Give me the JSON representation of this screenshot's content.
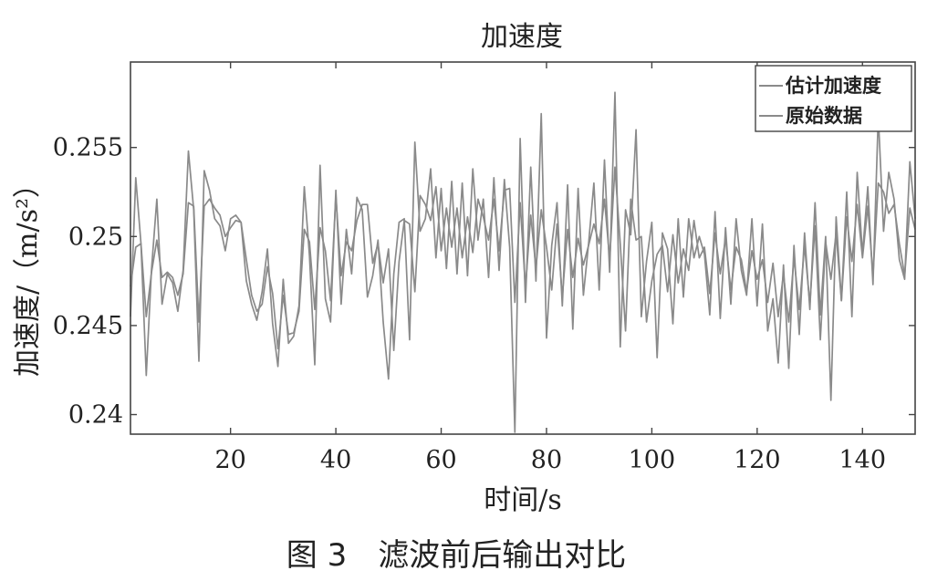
{
  "chart_data": {
    "type": "line",
    "title": "加速度",
    "xlabel": "时间/s",
    "ylabel": "加速度/（m/s²）",
    "xlim": [
      1,
      150
    ],
    "ylim": [
      0.2389,
      0.2598
    ],
    "xticks": [
      20,
      40,
      60,
      80,
      100,
      120,
      140
    ],
    "xtick_labels": [
      "20",
      "40",
      "60",
      "80",
      "100",
      "120",
      "140"
    ],
    "yticks": [
      0.24,
      0.245,
      0.25,
      0.255
    ],
    "ytick_labels": [
      "0.24",
      "0.245",
      "0.25",
      "0.255"
    ],
    "legend_position": "top-right",
    "grid": false,
    "x_start": 1,
    "x_step": 1,
    "series": [
      {
        "name": "估计加速度",
        "color": "#8a8a8a",
        "values": [
          0.2472,
          0.2494,
          0.2496,
          0.2455,
          0.248,
          0.2498,
          0.2477,
          0.248,
          0.2477,
          0.2467,
          0.2479,
          0.2519,
          0.2517,
          0.2452,
          0.2517,
          0.2521,
          0.2516,
          0.2512,
          0.25,
          0.2505,
          0.2509,
          0.2508,
          0.2487,
          0.2467,
          0.2458,
          0.2462,
          0.2483,
          0.2468,
          0.2437,
          0.2467,
          0.2445,
          0.2446,
          0.2458,
          0.2504,
          0.2497,
          0.2459,
          0.2505,
          0.2492,
          0.2464,
          0.2523,
          0.2478,
          0.2497,
          0.2492,
          0.2509,
          0.2518,
          0.2518,
          0.2485,
          0.2496,
          0.2474,
          0.2493,
          0.2436,
          0.2486,
          0.2509,
          0.2507,
          0.2469,
          0.2523,
          0.2518,
          0.2509,
          0.2528,
          0.2492,
          0.2516,
          0.2494,
          0.2516,
          0.2488,
          0.2511,
          0.2491,
          0.2521,
          0.2511,
          0.2498,
          0.2521,
          0.2492,
          0.2526,
          0.2527,
          0.2463,
          0.2519,
          0.2471,
          0.2512,
          0.2482,
          0.2515,
          0.2494,
          0.247,
          0.2507,
          0.2466,
          0.2504,
          0.2477,
          0.2499,
          0.2484,
          0.2495,
          0.2507,
          0.2496,
          0.2521,
          0.2487,
          0.2539,
          0.2496,
          0.2447,
          0.2521,
          0.2498,
          0.25,
          0.2452,
          0.2475,
          0.249,
          0.2495,
          0.2469,
          0.2501,
          0.2474,
          0.2493,
          0.2481,
          0.2509,
          0.2488,
          0.2494,
          0.2468,
          0.2502,
          0.2479,
          0.2499,
          0.247,
          0.2494,
          0.2487,
          0.2469,
          0.2492,
          0.2476,
          0.2487,
          0.2463,
          0.2485,
          0.2455,
          0.2479,
          0.2452,
          0.2488,
          0.2459,
          0.2495,
          0.2462,
          0.2506,
          0.2442,
          0.2497,
          0.2476,
          0.2502,
          0.2464,
          0.2511,
          0.2486,
          0.2518,
          0.2488,
          0.2517,
          0.2478,
          0.253,
          0.2525,
          0.2513,
          0.2518,
          0.2496,
          0.2478,
          0.2516,
          0.2504
        ]
      },
      {
        "name": "原始数据",
        "color": "#8a8a8a",
        "values": [
          0.2455,
          0.2533,
          0.2496,
          0.2422,
          0.2482,
          0.2521,
          0.2462,
          0.2479,
          0.2474,
          0.2458,
          0.2481,
          0.2548,
          0.2515,
          0.243,
          0.2537,
          0.2526,
          0.251,
          0.2506,
          0.2492,
          0.251,
          0.2512,
          0.2508,
          0.2475,
          0.2462,
          0.2453,
          0.2469,
          0.2493,
          0.2451,
          0.2427,
          0.2476,
          0.244,
          0.2444,
          0.2461,
          0.2528,
          0.2489,
          0.2428,
          0.254,
          0.2465,
          0.2452,
          0.2526,
          0.2462,
          0.2504,
          0.2479,
          0.2522,
          0.2515,
          0.2466,
          0.2478,
          0.2498,
          0.2452,
          0.242,
          0.2479,
          0.2508,
          0.251,
          0.2442,
          0.2553,
          0.2503,
          0.251,
          0.2538,
          0.2488,
          0.2527,
          0.2482,
          0.2531,
          0.2479,
          0.253,
          0.2478,
          0.2538,
          0.2498,
          0.2521,
          0.2477,
          0.2533,
          0.2481,
          0.2532,
          0.2494,
          0.239,
          0.2555,
          0.2463,
          0.2539,
          0.2475,
          0.2569,
          0.2443,
          0.2495,
          0.2519,
          0.2461,
          0.2529,
          0.2448,
          0.2527,
          0.2467,
          0.2496,
          0.253,
          0.247,
          0.2543,
          0.248,
          0.2581,
          0.2438,
          0.2515,
          0.2501,
          0.256,
          0.2455,
          0.2486,
          0.2508,
          0.2432,
          0.2502,
          0.2493,
          0.2451,
          0.251,
          0.2466,
          0.251,
          0.2488,
          0.25,
          0.249,
          0.2456,
          0.2514,
          0.2454,
          0.2505,
          0.2462,
          0.251,
          0.2481,
          0.2467,
          0.251,
          0.2461,
          0.2507,
          0.2447,
          0.2465,
          0.2429,
          0.2484,
          0.2426,
          0.2495,
          0.2445,
          0.2502,
          0.2459,
          0.2519,
          0.2456,
          0.25,
          0.2408,
          0.2511,
          0.2464,
          0.2525,
          0.2455,
          0.2536,
          0.249,
          0.2528,
          0.2473,
          0.2568,
          0.2503,
          0.2536,
          0.2521,
          0.2487,
          0.2476,
          0.2542,
          0.251
        ]
      }
    ]
  },
  "caption": "图 3　滤波前后输出对比"
}
